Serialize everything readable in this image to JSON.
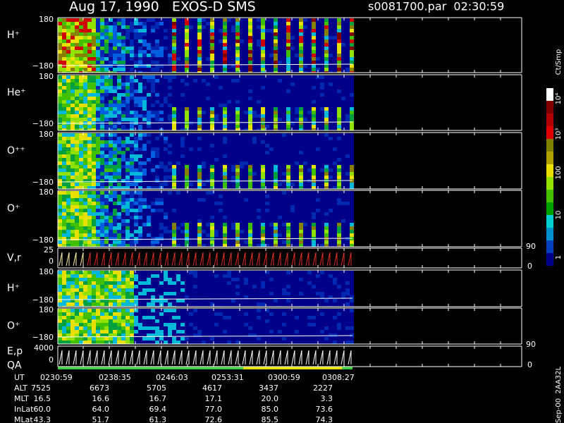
{
  "header": {
    "title": "Aug 17, 1990   EXOS-D SMS",
    "file": "s0081700.par  02:30:59"
  },
  "panels": [
    {
      "labels": [
        "H⁺"
      ],
      "ticks": [
        "180",
        "−180"
      ]
    },
    {
      "labels": [
        "He⁺"
      ],
      "ticks": [
        "180",
        "−180"
      ]
    },
    {
      "labels": [
        "O⁺⁺"
      ],
      "ticks": [
        "180",
        "−180"
      ]
    },
    {
      "labels": [
        "O⁺"
      ],
      "ticks": [
        "180",
        "−180"
      ]
    },
    {
      "labels": [
        "V,r"
      ],
      "ticks": [
        "25",
        "0"
      ]
    },
    {
      "labels": [
        "H⁺"
      ],
      "ticks": [
        "180",
        "−180"
      ]
    },
    {
      "labels": [
        "O⁺"
      ],
      "ticks": [
        "180",
        "−180"
      ]
    },
    {
      "labels": [
        "E,p",
        "QA"
      ],
      "ticks": [
        "4000",
        "0"
      ]
    }
  ],
  "right_axes": [
    {
      "ticks": [
        "90",
        "0"
      ]
    },
    {
      "ticks": [
        "90",
        "0"
      ]
    }
  ],
  "colorbar": {
    "title": "Ct/Smp",
    "ticks": [
      "10⁴",
      "10³",
      "100",
      "10",
      "1"
    ]
  },
  "footer": {
    "rows": [
      [
        "UT",
        "0230:59",
        "0238:35",
        "0246:03",
        "0253:31",
        "0300:59",
        "0308:27"
      ],
      [
        "ALT",
        "7525",
        "6673",
        "5705",
        "4617",
        "3437",
        "2227"
      ],
      [
        "MLT",
        "16.5",
        "16.6",
        "16.7",
        "17.1",
        "20.0",
        "3.3"
      ],
      [
        "InLat",
        "60.0",
        "64.0",
        "69.4",
        "77.0",
        "85.0",
        "73.6"
      ],
      [
        "MLat",
        "43.3",
        "51.7",
        "61.3",
        "72.6",
        "85.5",
        "74.3"
      ]
    ]
  },
  "side_note": "Sep-00  2AA32L"
}
